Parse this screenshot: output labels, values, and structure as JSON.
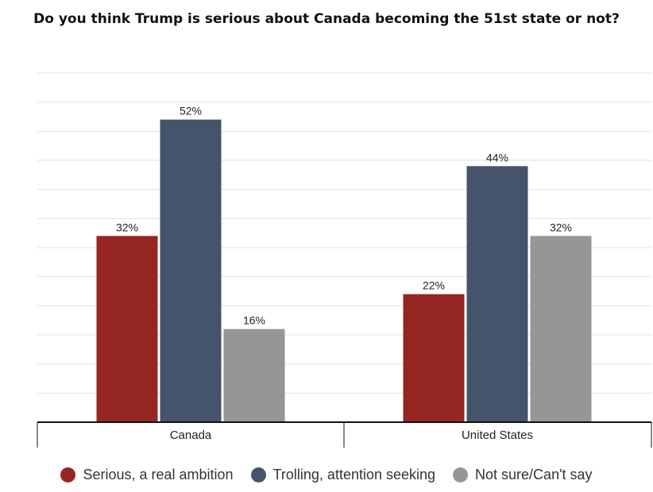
{
  "chart_data": {
    "type": "bar",
    "title": "Do you think Trump is serious about Canada becoming the 51st state or not?",
    "categories": [
      "Canada",
      "United States"
    ],
    "series": [
      {
        "name": "Serious, a real ambition",
        "values": [
          32,
          22
        ],
        "color": "#962622"
      },
      {
        "name": "Trolling, attention seeking",
        "values": [
          52,
          44
        ],
        "color": "#45546a"
      },
      {
        "name": "Not sure/Can't say",
        "values": [
          16,
          32
        ],
        "color": "#969696"
      }
    ],
    "value_suffix": "%",
    "ylim": [
      0,
      60
    ],
    "grid": true,
    "legend_position": "bottom"
  }
}
